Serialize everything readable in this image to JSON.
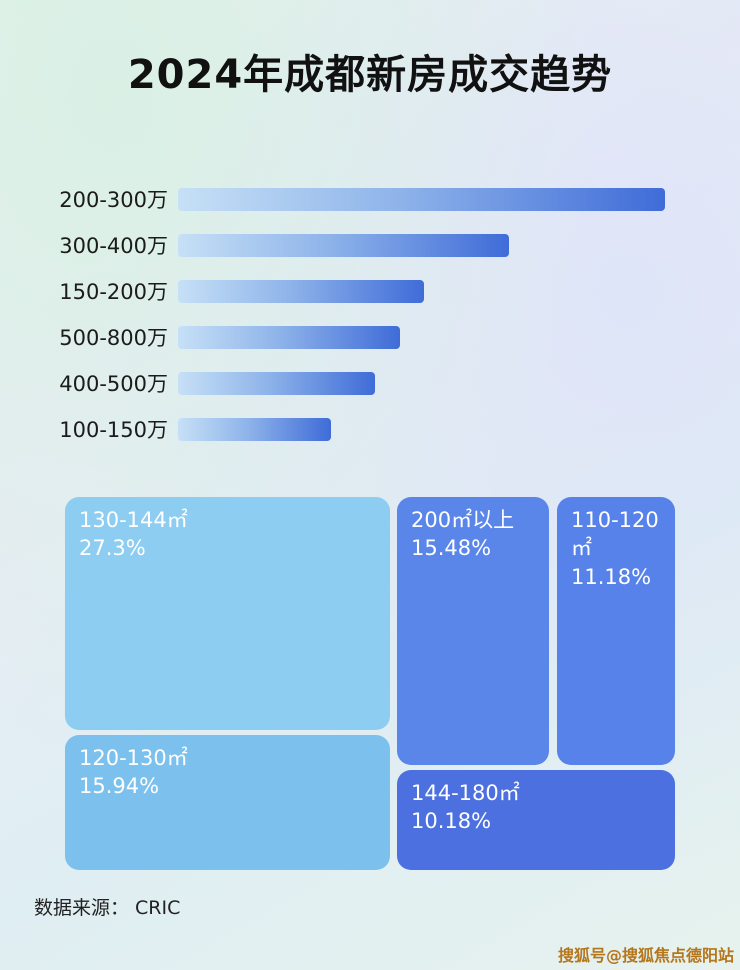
{
  "title": "2024年成都新房成交趋势",
  "chart_data": [
    {
      "type": "bar",
      "orientation": "horizontal",
      "title": "2024年成都新房成交趋势",
      "categories": [
        "200-300万",
        "300-400万",
        "150-200万",
        "500-800万",
        "400-500万",
        "100-150万"
      ],
      "values_relative_pct_of_max": [
        100,
        68,
        50.5,
        45.5,
        40.5,
        31.5
      ],
      "value_labels_shown": false,
      "grid": false,
      "legend": "none",
      "bar_gradient": [
        "#c6e0f6",
        "#3f6cd8"
      ]
    },
    {
      "type": "treemap",
      "blocks": [
        {
          "label": "130-144㎡",
          "value": "27.3%",
          "value_num": 27.3,
          "color": "#8ccdf1"
        },
        {
          "label": "200㎡以上",
          "value": "15.48%",
          "value_num": 15.48,
          "color": "#5a86ea"
        },
        {
          "label": "110-120㎡",
          "value": "11.18%",
          "value_num": 11.18,
          "color": "#5682e9"
        },
        {
          "label": "120-130㎡",
          "value": "15.94%",
          "value_num": 15.94,
          "color": "#7cc1ee"
        },
        {
          "label": "144-180㎡",
          "value": "10.18%",
          "value_num": 10.18,
          "color": "#4c70e0"
        }
      ]
    }
  ],
  "footer": {
    "source_label": "数据来源：  CRIC"
  },
  "watermark": {
    "text": "搜狐号@搜狐焦点德阳站",
    "color": "#b5761c"
  }
}
